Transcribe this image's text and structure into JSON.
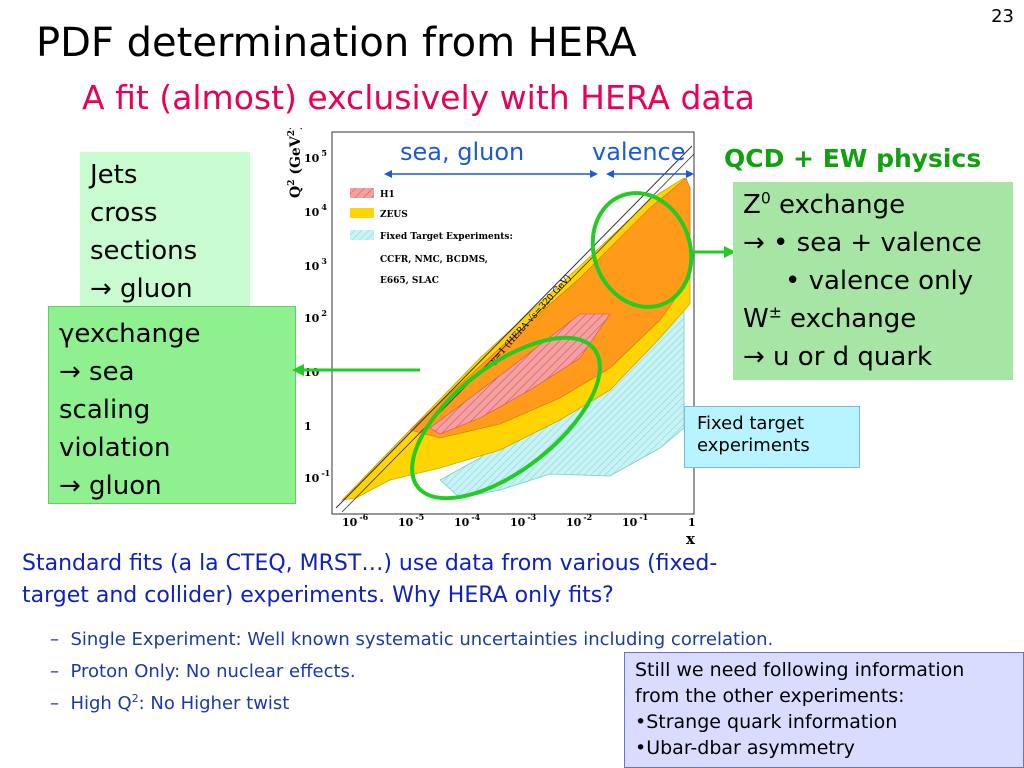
{
  "slide_number": "23",
  "title": "PDF determination from HERA",
  "subtitle": "A fit (almost) exclusively with HERA data",
  "jets_box": {
    "lines": [
      "Jets",
      "cross",
      "sections",
      "→ gluon"
    ]
  },
  "gamma_box": {
    "lines": [
      "γexchange",
      "→ sea",
      "scaling",
      "violation",
      "→ gluon"
    ]
  },
  "qcd": {
    "title": "QCD + EW physics",
    "z_label": "Z",
    "z_sup": "0",
    "z_rest": " exchange",
    "line2": "→ • sea + valence",
    "line3": "• valence only",
    "w_label": "W",
    "w_sup": "±",
    "w_rest": " exchange",
    "line5": "→ u or d quark"
  },
  "fixed_box": {
    "lines": [
      "Fixed target",
      "experiments"
    ]
  },
  "plot": {
    "region_sea_gluon": "sea, gluon",
    "region_valence": "valence",
    "y_axis_label": "Q",
    "y_axis_sup": "2",
    "y_axis_unit": " (GeV",
    "y_axis_unit_sup": "2",
    "y_axis_unit_end": ")",
    "x_axis_label": "x",
    "y_ticks": [
      {
        "base": "10",
        "exp": "5"
      },
      {
        "base": "10",
        "exp": "4"
      },
      {
        "base": "10",
        "exp": "3"
      },
      {
        "base": "10",
        "exp": "2"
      },
      {
        "base": "10",
        "exp": ""
      },
      {
        "base": "1",
        "exp": ""
      },
      {
        "base": "10",
        "exp": "-1"
      }
    ],
    "x_ticks": [
      {
        "base": "10",
        "exp": "-6"
      },
      {
        "base": "10",
        "exp": "-5"
      },
      {
        "base": "10",
        "exp": "-4"
      },
      {
        "base": "10",
        "exp": "-3"
      },
      {
        "base": "10",
        "exp": "-2"
      },
      {
        "base": "10",
        "exp": "-1"
      },
      {
        "base": "1",
        "exp": ""
      }
    ],
    "legend": {
      "h1": "H1",
      "zeus": "ZEUS",
      "fixed": "Fixed Target Experiments:",
      "fixed_list1": "CCFR, NMC, BCDMS,",
      "fixed_list2": "E665, SLAC"
    },
    "kinematic_limit": "y=1 (HERA √s=320 GeV)",
    "colors": {
      "h1": "#f29a9a",
      "zeus": "#ffd400",
      "fixed": "#b8eef0",
      "hera_orange": "#ff9a1a",
      "ellipse": "#22cc22"
    }
  },
  "standard_text": {
    "line1": "Standard fits (a la CTEQ, MRST…) use data from various (fixed-",
    "line2": " target and collider) experiments. Why HERA only fits?"
  },
  "bullets": [
    {
      "dash": "–",
      "text": "Single Experiment: Well known systematic uncertainties including correlation."
    },
    {
      "dash": "–",
      "text": "Proton Only: No nuclear effects."
    },
    {
      "dash": "–",
      "text": "High Q",
      "sup": "2",
      "rest": ":  No Higher twist"
    }
  ],
  "still_box": {
    "lines": [
      "Still we need following information",
      "from the other experiments:",
      "•Strange quark information",
      "•Ubar-dbar asymmetry"
    ]
  }
}
